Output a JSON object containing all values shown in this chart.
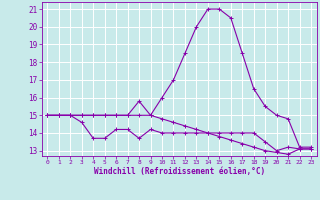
{
  "xlabel": "Windchill (Refroidissement éolien,°C)",
  "bg_color": "#c8eaea",
  "grid_color": "#ffffff",
  "line_color": "#8800aa",
  "hours": [
    0,
    1,
    2,
    3,
    4,
    5,
    6,
    7,
    8,
    9,
    10,
    11,
    12,
    13,
    14,
    15,
    16,
    17,
    18,
    19,
    20,
    21,
    22,
    23
  ],
  "line1": [
    15,
    15,
    15,
    15,
    15,
    15,
    15,
    15,
    15.8,
    15,
    16,
    17,
    18.5,
    20,
    21,
    21,
    20.5,
    18.5,
    16.5,
    15.5,
    15,
    14.8,
    13.2,
    13.2
  ],
  "line2": [
    15,
    15,
    15,
    14.6,
    13.7,
    13.7,
    14.2,
    14.2,
    13.7,
    14.2,
    14,
    14,
    14,
    14,
    14,
    14,
    14,
    14,
    14,
    13.5,
    13,
    13.2,
    13.1,
    13.1
  ],
  "line3": [
    15,
    15,
    15,
    15,
    15,
    15,
    15,
    15,
    15,
    15,
    14.8,
    14.6,
    14.4,
    14.2,
    14.0,
    13.8,
    13.6,
    13.4,
    13.2,
    13.0,
    12.9,
    12.8,
    13.1,
    13.1
  ],
  "ylim": [
    12.7,
    21.4
  ],
  "xlim": [
    -0.5,
    23.5
  ],
  "yticks": [
    13,
    14,
    15,
    16,
    17,
    18,
    19,
    20,
    21
  ],
  "xticks": [
    0,
    1,
    2,
    3,
    4,
    5,
    6,
    7,
    8,
    9,
    10,
    11,
    12,
    13,
    14,
    15,
    16,
    17,
    18,
    19,
    20,
    21,
    22,
    23
  ]
}
